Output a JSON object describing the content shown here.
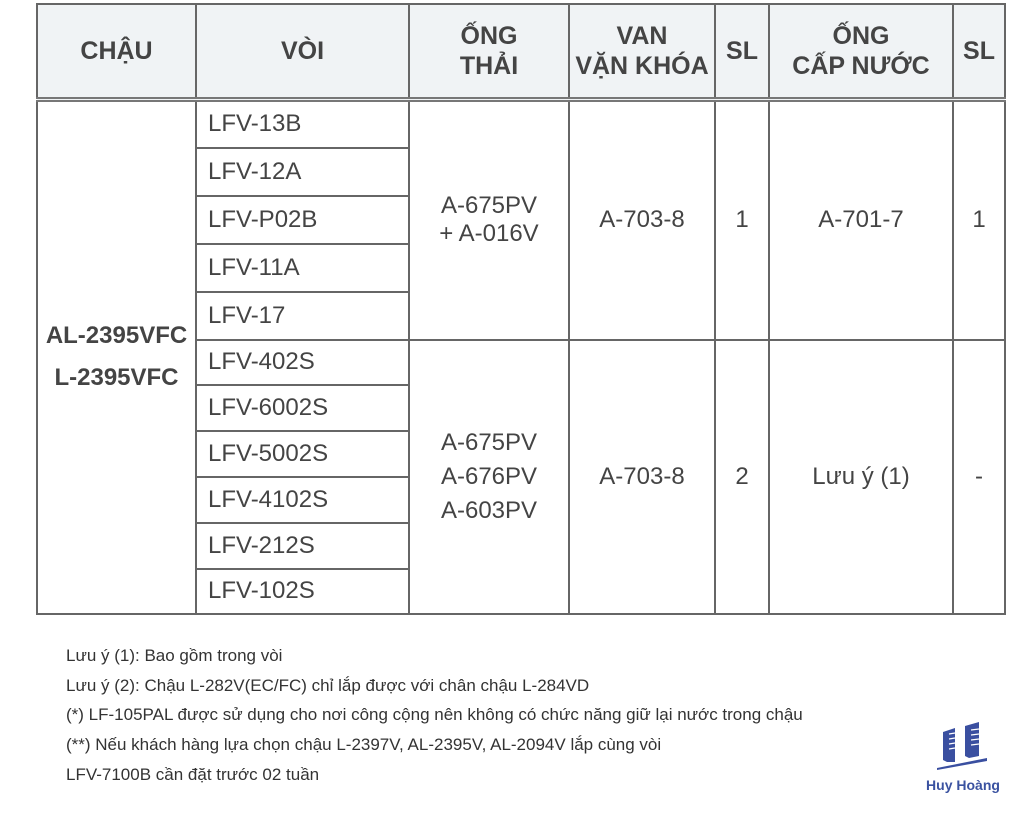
{
  "table": {
    "headers": {
      "chau": "CHẬU",
      "voi": "VÒI",
      "ong_thai": [
        "ỐNG",
        "THẢI"
      ],
      "van": [
        "VAN",
        "VẶN KHÓA"
      ],
      "sl1": "SL",
      "ong_cap": [
        "ỐNG",
        "CẤP NƯỚC"
      ],
      "sl2": "SL"
    },
    "chau": [
      "AL-2395VFC",
      "L-2395VFC"
    ],
    "groups": [
      {
        "voi": [
          "LFV-13B",
          "LFV-12A",
          "LFV-P02B",
          "LFV-11A",
          "LFV-17"
        ],
        "ong_thai": [
          "A-675PV",
          "+ A-016V"
        ],
        "van": "A-703-8",
        "sl1": "1",
        "ong_cap": "A-701-7",
        "sl2": "1"
      },
      {
        "voi": [
          "LFV-402S",
          "LFV-6002S",
          "LFV-5002S",
          "LFV-4102S",
          "LFV-212S",
          "LFV-102S"
        ],
        "ong_thai": [
          "A-675PV",
          "A-676PV",
          "A-603PV"
        ],
        "van": "A-703-8",
        "sl1": "2",
        "ong_cap": "Lưu ý (1)",
        "sl2": "-"
      }
    ]
  },
  "notes": [
    "Lưu ý (1): Bao gồm trong vòi",
    "Lưu ý (2): Chậu L-282V(EC/FC) chỉ lắp được với chân chậu L-284VD",
    "(*) LF-105PAL được sử dụng cho nơi công cộng nên không có chức năng giữ lại nước trong chậu",
    "(**) Nếu khách hàng lựa chọn chậu L-2397V, AL-2395V, AL-2094V lắp cùng vòi",
    "LFV-7100B cần đặt trước 02 tuần"
  ],
  "logo": {
    "text": "Huy Hoàng",
    "color": "#3a52a0"
  }
}
